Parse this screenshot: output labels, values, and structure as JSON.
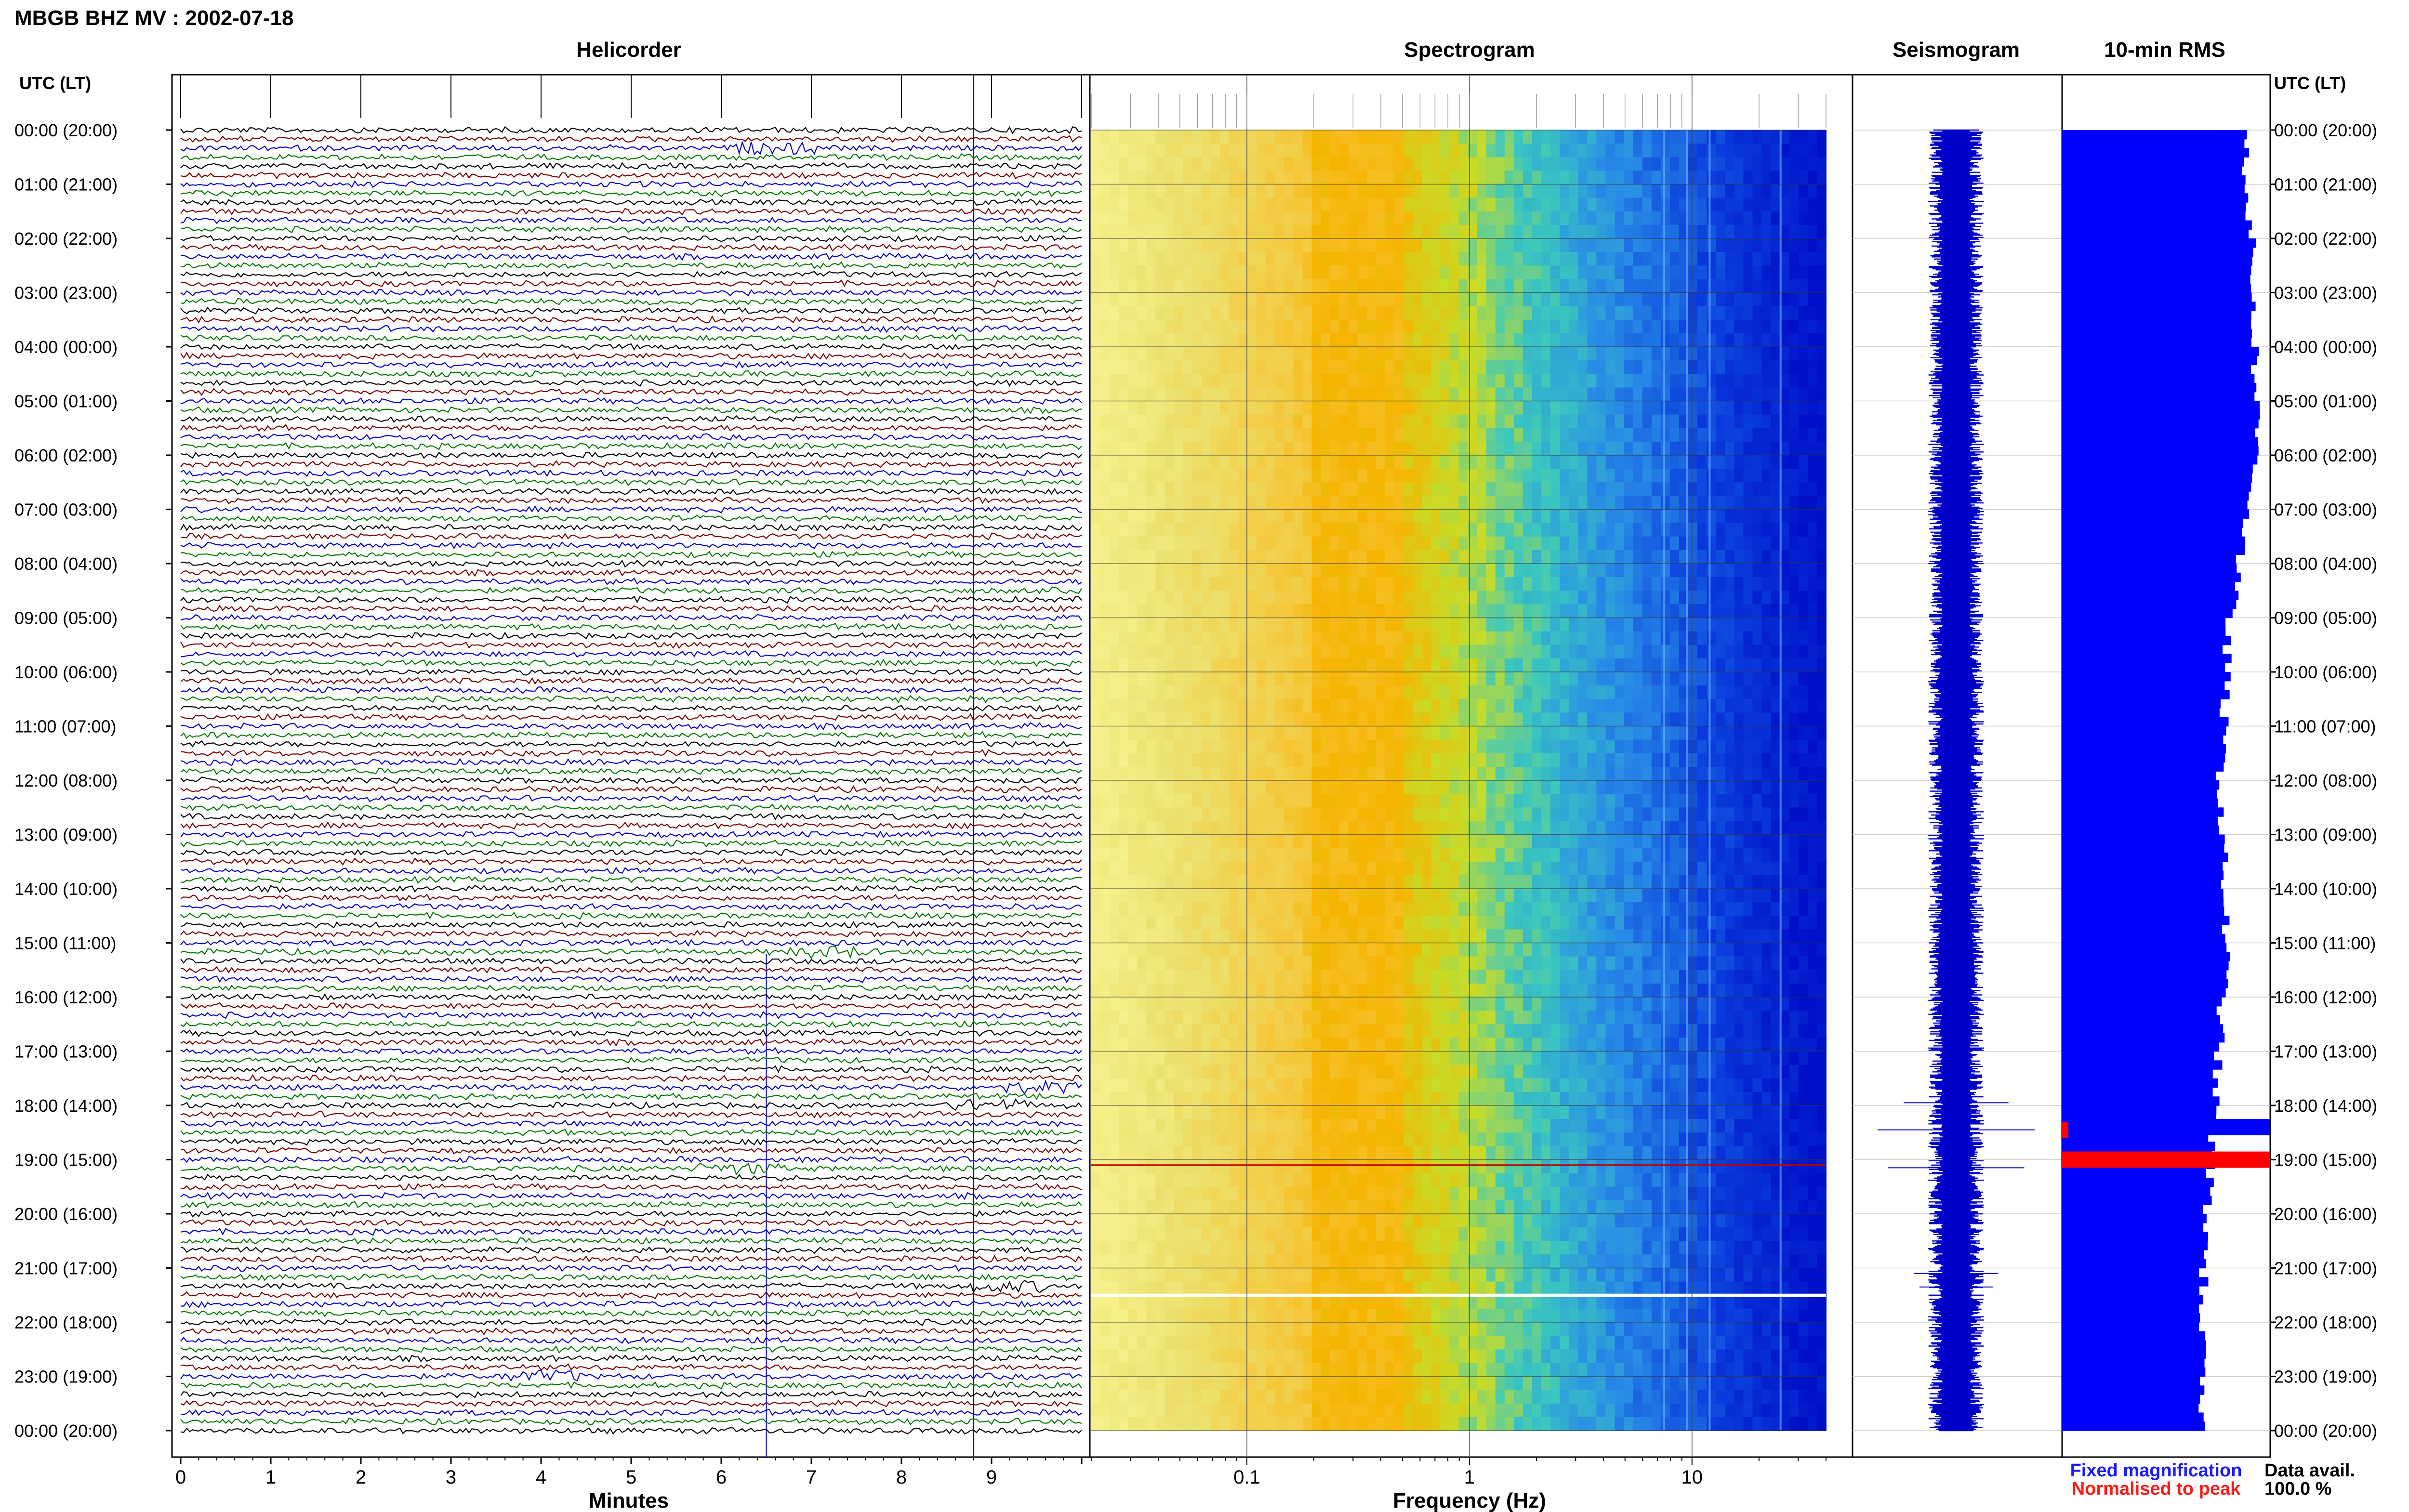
{
  "header": {
    "title": "MBGB BHZ MV : 2002-07-18"
  },
  "panels": {
    "helicorder": "Helicorder",
    "spectrogram": "Spectrogram",
    "seismogram": "Seismogram",
    "rms": "10-min RMS"
  },
  "axis_labels": {
    "left_time": "UTC (LT)",
    "right_time": "UTC (LT)",
    "minutes": "Minutes",
    "frequency": "Frequency (Hz)"
  },
  "legend": {
    "fixed": "Fixed magnification",
    "normalised": "Normalised to peak",
    "data_avail_label": "Data avail.",
    "data_avail_value": "100.0 %"
  },
  "colors": {
    "trace_black": "#000000",
    "trace_red": "#7a0000",
    "trace_blue": "#0000c8",
    "trace_green": "#007a00",
    "rms_fixed": "#0000ff",
    "rms_normalised": "#ff0000",
    "spectro_low": "#f5f08a",
    "spectro_peak": "#f5b400",
    "spectro_high": "#0010c8"
  },
  "chart_data": [
    {
      "type": "line",
      "name": "helicorder",
      "title": "Helicorder",
      "xlabel": "Minutes",
      "x_ticks": [
        "0",
        "1",
        "2",
        "3",
        "4",
        "5",
        "6",
        "7",
        "8",
        "9"
      ],
      "xlim": [
        0,
        10
      ],
      "y_ticks": [
        "00:00 (20:00)",
        "01:00 (21:00)",
        "02:00 (22:00)",
        "03:00 (23:00)",
        "04:00 (00:00)",
        "05:00 (01:00)",
        "06:00 (02:00)",
        "07:00 (03:00)",
        "08:00 (04:00)",
        "09:00 (05:00)",
        "10:00 (06:00)",
        "11:00 (07:00)",
        "12:00 (08:00)",
        "13:00 (09:00)",
        "14:00 (10:00)",
        "15:00 (11:00)",
        "16:00 (12:00)",
        "17:00 (13:00)",
        "18:00 (14:00)",
        "19:00 (15:00)",
        "20:00 (16:00)",
        "21:00 (17:00)",
        "22:00 (18:00)",
        "23:00 (19:00)",
        "00:00 (20:00)"
      ],
      "trace_count": 144,
      "trace_color_cycle": [
        "black",
        "red",
        "blue",
        "green"
      ],
      "events": [
        {
          "hour": 0.33,
          "minute": 6.6
        },
        {
          "hour": 15.17,
          "minute": 7.2
        },
        {
          "hour": 17.67,
          "minute": 9.5
        },
        {
          "hour": 18.0,
          "minute": 9.0
        },
        {
          "hour": 19.17,
          "minute": 6.2
        },
        {
          "hour": 21.33,
          "minute": 9.2
        },
        {
          "hour": 23.0,
          "minute": 4.0
        }
      ]
    },
    {
      "type": "heatmap",
      "name": "spectrogram",
      "title": "Spectrogram",
      "xlabel": "Frequency (Hz)",
      "x_scale": "log",
      "xlim": [
        0.02,
        40
      ],
      "x_ticks": [
        "0.1",
        "1",
        "10"
      ],
      "peak_band_hz": [
        0.2,
        0.5
      ],
      "bright_lines_hz": [
        7.5,
        9.5,
        12.0,
        25.0
      ],
      "gap_hour": 21.5
    },
    {
      "type": "line",
      "name": "seismogram",
      "title": "Seismogram",
      "spikes": [
        {
          "hour": 17.95,
          "amplitude": 0.5
        },
        {
          "hour": 18.45,
          "amplitude": 0.75
        },
        {
          "hour": 19.15,
          "amplitude": 0.65
        },
        {
          "hour": 21.1,
          "amplitude": 0.4
        },
        {
          "hour": 21.35,
          "amplitude": 0.35
        }
      ]
    },
    {
      "type": "bar",
      "name": "rms",
      "title": "10-min RMS",
      "orientation": "horizontal",
      "bins": 144,
      "base_levels": [
        {
          "hour": 0,
          "value": 0.88
        },
        {
          "hour": 3,
          "value": 0.92
        },
        {
          "hour": 6,
          "value": 0.94
        },
        {
          "hour": 9,
          "value": 0.8
        },
        {
          "hour": 12,
          "value": 0.76
        },
        {
          "hour": 15,
          "value": 0.79
        },
        {
          "hour": 18,
          "value": 0.73
        },
        {
          "hour": 21,
          "value": 0.68
        },
        {
          "hour": 24,
          "value": 0.66
        }
      ],
      "peaks": [
        {
          "hour": 18.4,
          "value": 1.0,
          "series": "fixed"
        },
        {
          "hour": 19.0,
          "value": 1.0,
          "series": "normalised"
        },
        {
          "hour": 18.45,
          "value": 0.03,
          "series": "normalised"
        }
      ]
    }
  ]
}
